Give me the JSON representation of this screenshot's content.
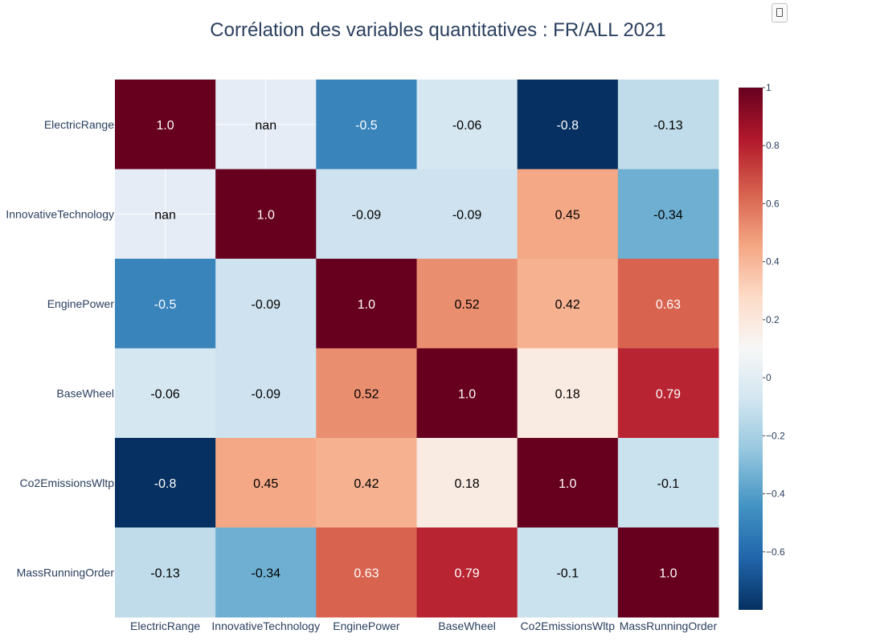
{
  "title": "Corrélation des variables quantitatives : FR/ALL 2021",
  "chart_data": {
    "type": "heatmap",
    "title": "Corrélation des variables quantitatives : FR/ALL 2021",
    "x_categories": [
      "ElectricRange",
      "InnovativeTechnology",
      "EnginePower",
      "BaseWheel",
      "Co2EmissionsWltp",
      "MassRunningOrder"
    ],
    "y_categories": [
      "ElectricRange",
      "InnovativeTechnology",
      "EnginePower",
      "BaseWheel",
      "Co2EmissionsWltp",
      "MassRunningOrder"
    ],
    "values": [
      [
        1.0,
        null,
        -0.5,
        -0.06,
        -0.8,
        -0.13
      ],
      [
        null,
        1.0,
        -0.09,
        -0.09,
        0.45,
        -0.34
      ],
      [
        -0.5,
        -0.09,
        1.0,
        0.52,
        0.42,
        0.63
      ],
      [
        -0.06,
        -0.09,
        0.52,
        1.0,
        0.18,
        0.79
      ],
      [
        -0.8,
        0.45,
        0.42,
        0.18,
        1.0,
        -0.1
      ],
      [
        -0.13,
        -0.34,
        0.63,
        0.79,
        -0.1,
        1.0
      ]
    ],
    "labels": [
      [
        "1.0",
        "nan",
        "-0.5",
        "-0.06",
        "-0.8",
        "-0.13"
      ],
      [
        "nan",
        "1.0",
        "-0.09",
        "-0.09",
        "0.45",
        "-0.34"
      ],
      [
        "-0.5",
        "-0.09",
        "1.0",
        "0.52",
        "0.42",
        "0.63"
      ],
      [
        "-0.06",
        "-0.09",
        "0.52",
        "1.0",
        "0.18",
        "0.79"
      ],
      [
        "-0.8",
        "0.45",
        "0.42",
        "0.18",
        "1.0",
        "-0.1"
      ],
      [
        "-0.13",
        "-0.34",
        "0.63",
        "0.79",
        "-0.1",
        "1.0"
      ]
    ],
    "colorscale": "RdBu_r",
    "zmin": -0.8,
    "zmax": 1.0,
    "colorbar_ticks": [
      "1",
      "0.8",
      "0.6",
      "0.4",
      "0.2",
      "0",
      "−0.2",
      "−0.4",
      "−0.6"
    ],
    "colorbar_tick_values": [
      1,
      0.8,
      0.6,
      0.4,
      0.2,
      0,
      -0.2,
      -0.4,
      -0.6
    ],
    "nan_color": "#e5ecf6"
  }
}
